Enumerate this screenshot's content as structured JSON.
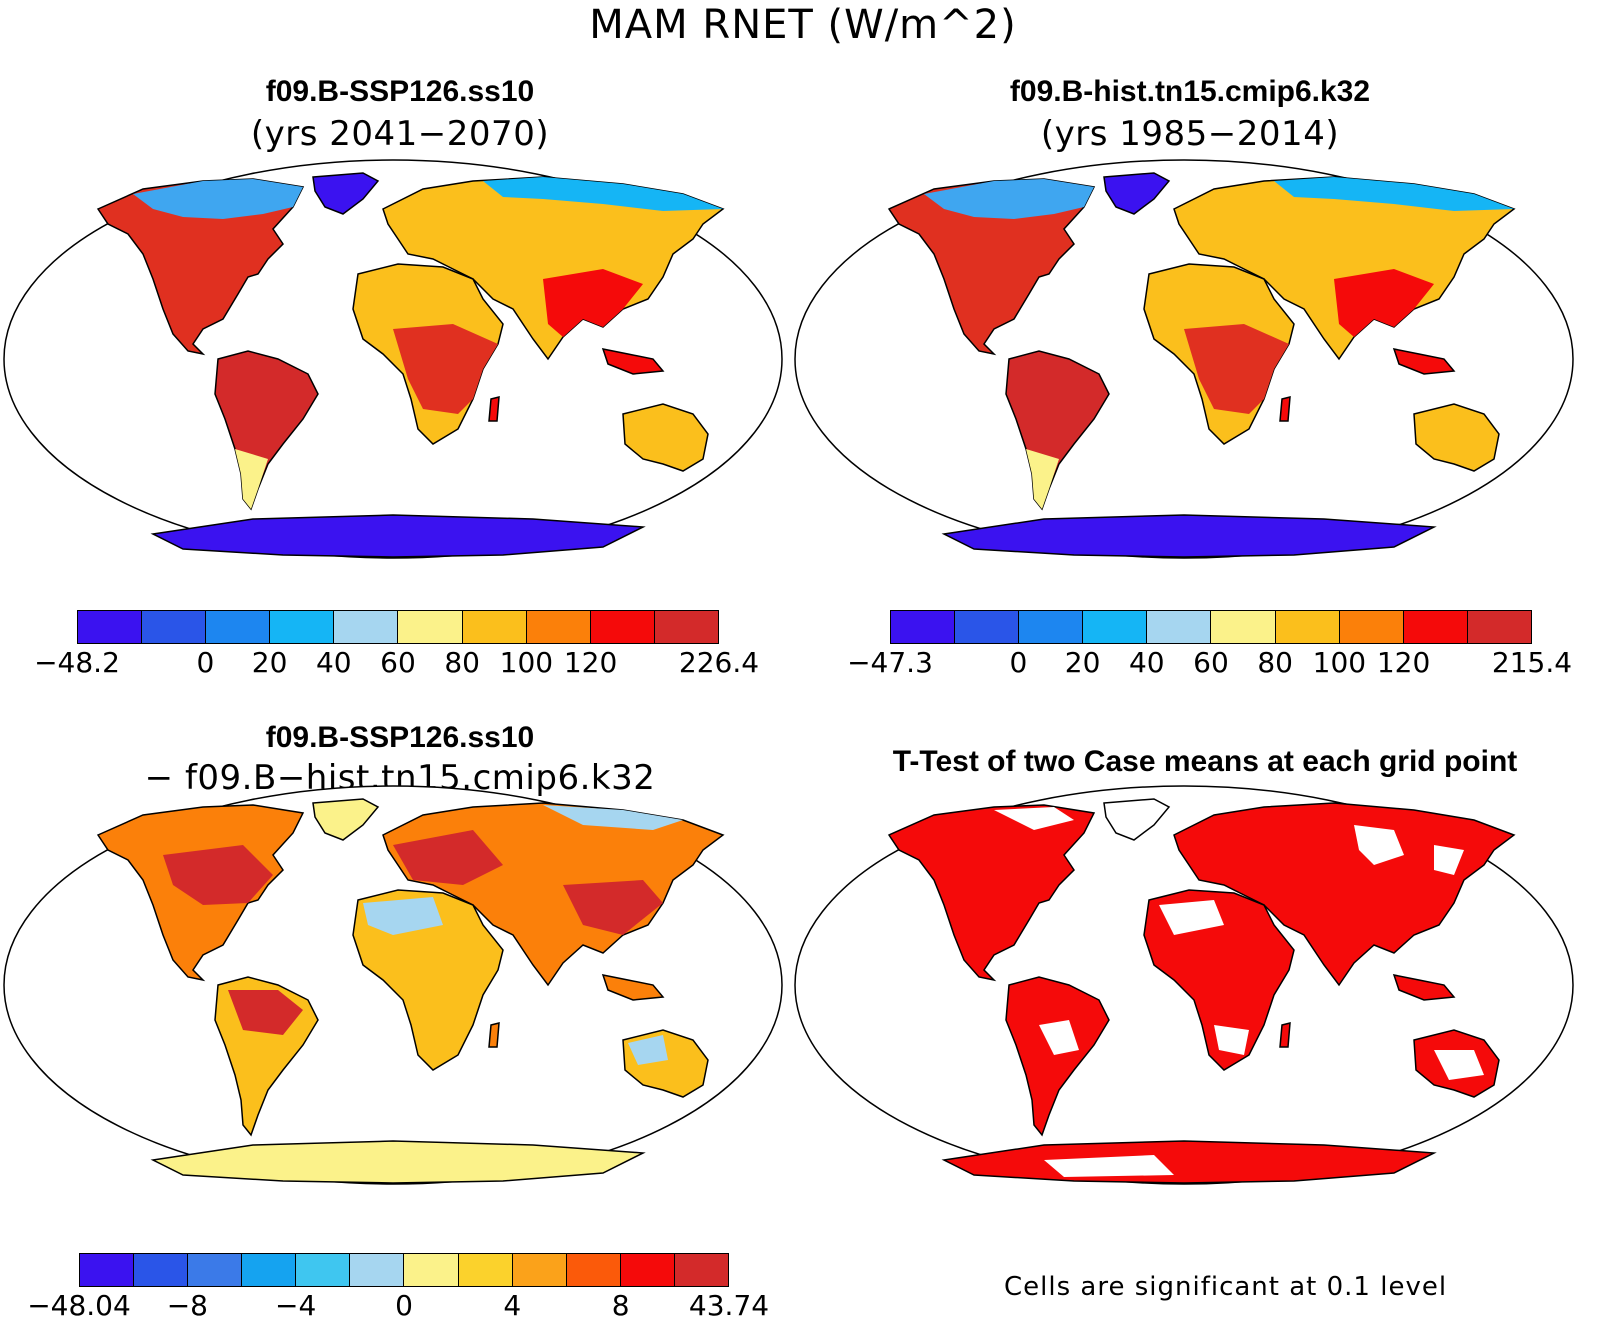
{
  "main_title": "MAM RNET (W/m^2)",
  "panels": [
    {
      "title": "f09.B-SSP126.ss10",
      "subtitle": "(yrs 2041−2070)",
      "colorbar": {
        "colors": [
          "#3b12f0",
          "#2a55e8",
          "#1d86f0",
          "#15b5f5",
          "#a6d6f0",
          "#fbf28a",
          "#fbbf1c",
          "#fb800a",
          "#f50a0a",
          "#d32a2a"
        ],
        "labels": [
          "−48.2",
          "0",
          "20",
          "40",
          "60",
          "80",
          "100",
          "120",
          "226.4"
        ]
      }
    },
    {
      "title": "f09.B-hist.tn15.cmip6.k32",
      "subtitle": "(yrs 1985−2014)",
      "colorbar": {
        "colors": [
          "#3b12f0",
          "#2a55e8",
          "#1d86f0",
          "#15b5f5",
          "#a6d6f0",
          "#fbf28a",
          "#fbbf1c",
          "#fb800a",
          "#f50a0a",
          "#d32a2a"
        ],
        "labels": [
          "−47.3",
          "0",
          "20",
          "40",
          "60",
          "80",
          "100",
          "120",
          "215.4"
        ]
      }
    },
    {
      "title": "f09.B-SSP126.ss10",
      "subtitle": "− f09.B−hist.tn15.cmip6.k32",
      "colorbar": {
        "colors": [
          "#3b12f0",
          "#2a55e8",
          "#3b7ae8",
          "#15a3f0",
          "#3fc6f0",
          "#a6d6f0",
          "#fbf28a",
          "#fbd22c",
          "#fba21a",
          "#fb5a0a",
          "#f50a0a",
          "#d32a2a"
        ],
        "labels": [
          "−48.04",
          "−8",
          "−4",
          "0",
          "4",
          "8",
          "43.74"
        ]
      }
    },
    {
      "title": "T-Test of two Case means at each grid point",
      "note": "Cells are significant at 0.1 level"
    }
  ]
}
